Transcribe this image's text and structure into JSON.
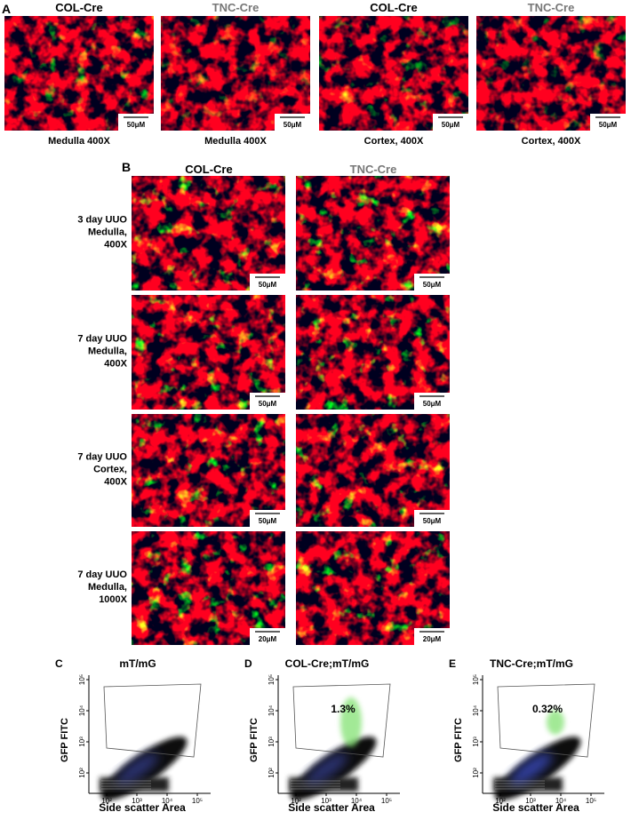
{
  "panel_a": {
    "label": "A",
    "images": [
      {
        "title": "COL-Cre",
        "scale_bar": "50μM",
        "caption": "Medulla 400X"
      },
      {
        "title": "TNC-Cre",
        "scale_bar": "50μM",
        "caption": "Medulla 400X"
      },
      {
        "title": "COL-Cre",
        "scale_bar": "50μM",
        "caption": "Cortex, 400X"
      },
      {
        "title": "TNC-Cre",
        "scale_bar": "50μM",
        "caption": "Cortex, 400X"
      }
    ]
  },
  "panel_b": {
    "label": "B",
    "columns": [
      "COL-Cre",
      "TNC-Cre"
    ],
    "rows": [
      {
        "label": [
          "3 day UUO",
          "Medulla,",
          "400X"
        ],
        "scale_bars": [
          "50μM",
          "50μM"
        ]
      },
      {
        "label": [
          "7 day UUO",
          "Medulla,",
          "400X"
        ],
        "scale_bars": [
          "50μM",
          "50μM"
        ]
      },
      {
        "label": [
          "7 day UUO",
          "Cortex,",
          "400X"
        ],
        "scale_bars": [
          "50μM",
          "50μM"
        ]
      },
      {
        "label": [
          "7 day UUO",
          "Medulla,",
          "1000X"
        ],
        "scale_bars": [
          "20μM",
          "20μM"
        ]
      }
    ]
  },
  "flow_panels": [
    {
      "label": "C",
      "title": "mT/mG",
      "x_label": "Side scatter Area",
      "y_label": "GFP FITC",
      "xticks": [
        "10²",
        "10³",
        "10⁴",
        "10⁵"
      ],
      "yticks": [
        "10²",
        "10³",
        "10⁴",
        "10⁵"
      ]
    },
    {
      "label": "D",
      "title": "COL-Cre;mT/mG",
      "gate_percent": "1.3%",
      "x_label": "Side scatter Area",
      "y_label": "GFP FITC",
      "xticks": [
        "10²",
        "10³",
        "10⁴",
        "10⁵"
      ],
      "yticks": [
        "10²",
        "10³",
        "10⁴",
        "10⁵"
      ]
    },
    {
      "label": "E",
      "title": "TNC-Cre;mT/mG",
      "gate_percent": "0.32%",
      "x_label": "Side scatter Area",
      "y_label": "GFP FITC",
      "xticks": [
        "10²",
        "10³",
        "10⁴",
        "10⁵"
      ],
      "yticks": [
        "10²",
        "10³",
        "10⁴",
        "10⁵"
      ]
    }
  ]
}
